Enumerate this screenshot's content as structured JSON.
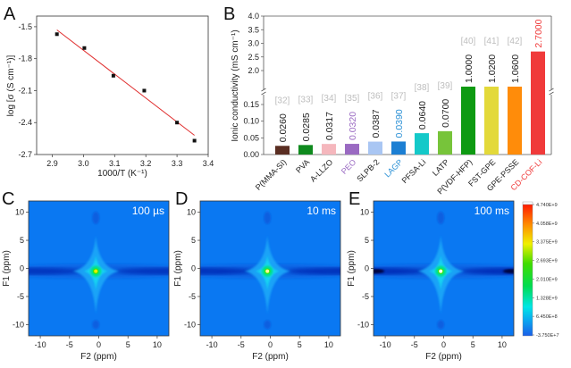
{
  "chart_data": [
    {
      "panel": "A",
      "type": "scatter",
      "xlabel": "1000/T (K⁻¹)",
      "ylabel": "log [σ (S cm⁻¹)]",
      "xlim": [
        2.85,
        3.4
      ],
      "ylim": [
        -2.7,
        -1.4
      ],
      "xticks": [
        2.9,
        3.0,
        3.1,
        3.2,
        3.3,
        3.4
      ],
      "xtick_labels": [
        "2.9",
        "3.0",
        "3.1",
        "3.2",
        "3.3",
        "3.4"
      ],
      "yticks": [
        -1.5,
        -1.8,
        -2.1,
        -2.4,
        -2.7
      ],
      "ytick_labels": [
        "-1.5",
        "-1.8",
        "-2.1",
        "-2.4",
        "-2.7"
      ],
      "points": [
        {
          "x": 2.915,
          "y": -1.57
        },
        {
          "x": 3.003,
          "y": -1.7
        },
        {
          "x": 3.096,
          "y": -1.96
        },
        {
          "x": 3.195,
          "y": -2.1
        },
        {
          "x": 3.3,
          "y": -2.4
        },
        {
          "x": 3.356,
          "y": -2.57
        }
      ],
      "fit_line": {
        "x": [
          2.915,
          3.356
        ],
        "y": [
          -1.53,
          -2.52
        ],
        "color": "#e03030"
      },
      "marker_color": "#111111"
    },
    {
      "panel": "B",
      "type": "bar",
      "ylabel": "Ionic conductivity (mS cm⁻¹)",
      "broken_axis": true,
      "ylim_lower": [
        0,
        0.2
      ],
      "ylim_upper": [
        1.5,
        4.0
      ],
      "yticks_lower": [
        "0.00",
        "0.05",
        "0.10",
        "0.15"
      ],
      "yticks_upper": [
        "2.0",
        "2.5",
        "3.0",
        "3.5",
        "4.0"
      ],
      "categories": [
        "P(MMA-SI)",
        "PVA",
        "A-LLZO",
        "PEO",
        "SLPB-2",
        "LAGP",
        "PFSA-Li",
        "LATP",
        "P(VDF-HFP)",
        "FST-GPE",
        "GPE-PSSE",
        "CD-COF-Li"
      ],
      "values": [
        0.026,
        0.0285,
        0.0317,
        0.032,
        0.0387,
        0.039,
        0.064,
        0.07,
        1.0,
        1.02,
        1.06,
        2.7
      ],
      "value_labels": [
        "0.0260",
        "0.0285",
        "0.0317",
        "0.0320",
        "0.0387",
        "0.0390",
        "0.0640",
        "0.0700",
        "1.0000",
        "1.0200",
        "1.0600",
        "2.7000"
      ],
      "refs": [
        "[32]",
        "[33]",
        "[34]",
        "[35]",
        "[36]",
        "[37]",
        "[38]",
        "[39]",
        "[40]",
        "[41]",
        "[42]",
        ""
      ],
      "bar_colors": [
        "#5a2e22",
        "#0f8a1e",
        "#f5b7bd",
        "#9a6ac2",
        "#a9c6f3",
        "#1c7fd3",
        "#14c9c9",
        "#77c43a",
        "#0e9a12",
        "#e3d93a",
        "#ff8c0a",
        "#f03a3a"
      ],
      "label_colors": [
        "#222222",
        "#222222",
        "#222222",
        "#9a6ac2",
        "#222222",
        "#2a90d5",
        "#222222",
        "#222222",
        "#222222",
        "#222222",
        "#222222",
        "#f03a3a"
      ]
    },
    {
      "panel": "C",
      "type": "heatmap",
      "inset_label": "100 µs",
      "xlabel": "F2 (ppm)",
      "ylabel": "F1 (ppm)",
      "xlim": [
        -12,
        12
      ],
      "ylim": [
        -12,
        12
      ],
      "ticks": [
        -10,
        -5,
        0,
        5,
        10
      ],
      "tick_labels": [
        "-10",
        "-5",
        "0",
        "5",
        "10"
      ],
      "peak": {
        "f2": -0.5,
        "f1": -0.5,
        "intensity": 0.75
      }
    },
    {
      "panel": "D",
      "type": "heatmap",
      "inset_label": "10 ms",
      "xlabel": "F2 (ppm)",
      "ylabel": "F1 (ppm)",
      "xlim": [
        -12,
        12
      ],
      "ylim": [
        -12,
        12
      ],
      "ticks": [
        -10,
        -5,
        0,
        5,
        10
      ],
      "tick_labels": [
        "-10",
        "-5",
        "0",
        "5",
        "10"
      ],
      "peak": {
        "f2": -0.5,
        "f1": -0.5,
        "intensity": 0.88
      }
    },
    {
      "panel": "E",
      "type": "heatmap",
      "inset_label": "100 ms",
      "xlabel": "F2 (ppm)",
      "ylabel": "F1 (ppm)",
      "xlim": [
        -12,
        12
      ],
      "ylim": [
        -12,
        12
      ],
      "ticks": [
        -10,
        -5,
        0,
        5,
        10
      ],
      "tick_labels": [
        "-10",
        "-5",
        "0",
        "5",
        "10"
      ],
      "peak": {
        "f2": -0.5,
        "f1": -0.5,
        "intensity": 1.0
      },
      "colorbar": {
        "labels": [
          "4.740E+9",
          "4.058E+9",
          "3.375E+9",
          "2.693E+9",
          "2.010E+9",
          "1.328E+9",
          "6.450E+8",
          "-3.750E+7"
        ],
        "range": [
          -37500000.0,
          4740000000.0
        ]
      }
    }
  ],
  "panel_letters": [
    "A",
    "B",
    "C",
    "D",
    "E"
  ]
}
